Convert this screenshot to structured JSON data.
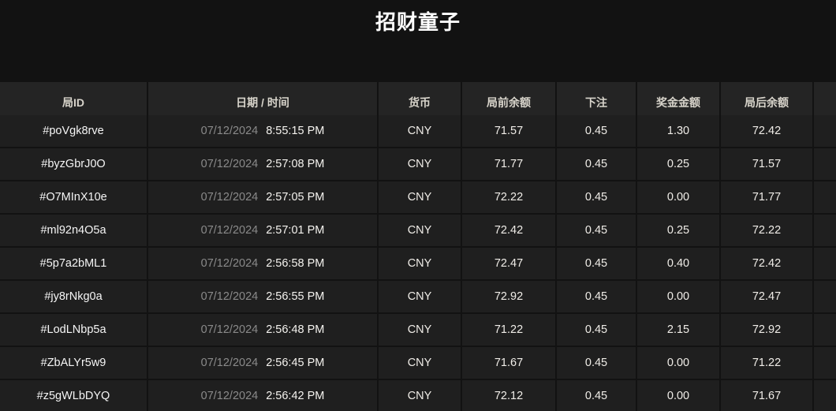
{
  "title": "招财童子",
  "table": {
    "headers": [
      {
        "key": "id",
        "label": "局ID"
      },
      {
        "key": "datetime",
        "label": "日期 / 时间"
      },
      {
        "key": "currency",
        "label": "货币"
      },
      {
        "key": "before",
        "label": "局前余额"
      },
      {
        "key": "bet",
        "label": "下注"
      },
      {
        "key": "prize",
        "label": "奖金金额"
      },
      {
        "key": "after",
        "label": "局后余额"
      },
      {
        "key": "extra",
        "label": ""
      }
    ],
    "rows": [
      {
        "id": "#poVgk8rve",
        "date": "07/12/2024",
        "time": "8:55:15 PM",
        "currency": "CNY",
        "before": "71.57",
        "bet": "0.45",
        "prize": "1.30",
        "after": "72.42"
      },
      {
        "id": "#byzGbrJ0O",
        "date": "07/12/2024",
        "time": "2:57:08 PM",
        "currency": "CNY",
        "before": "71.77",
        "bet": "0.45",
        "prize": "0.25",
        "after": "71.57"
      },
      {
        "id": "#O7MInX10e",
        "date": "07/12/2024",
        "time": "2:57:05 PM",
        "currency": "CNY",
        "before": "72.22",
        "bet": "0.45",
        "prize": "0.00",
        "after": "71.77"
      },
      {
        "id": "#ml92n4O5a",
        "date": "07/12/2024",
        "time": "2:57:01 PM",
        "currency": "CNY",
        "before": "72.42",
        "bet": "0.45",
        "prize": "0.25",
        "after": "72.22"
      },
      {
        "id": "#5p7a2bML1",
        "date": "07/12/2024",
        "time": "2:56:58 PM",
        "currency": "CNY",
        "before": "72.47",
        "bet": "0.45",
        "prize": "0.40",
        "after": "72.42"
      },
      {
        "id": "#jy8rNkg0a",
        "date": "07/12/2024",
        "time": "2:56:55 PM",
        "currency": "CNY",
        "before": "72.92",
        "bet": "0.45",
        "prize": "0.00",
        "after": "72.47"
      },
      {
        "id": "#LodLNbp5a",
        "date": "07/12/2024",
        "time": "2:56:48 PM",
        "currency": "CNY",
        "before": "71.22",
        "bet": "0.45",
        "prize": "2.15",
        "after": "72.92"
      },
      {
        "id": "#ZbALYr5w9",
        "date": "07/12/2024",
        "time": "2:56:45 PM",
        "currency": "CNY",
        "before": "71.67",
        "bet": "0.45",
        "prize": "0.00",
        "after": "71.22"
      },
      {
        "id": "#z5gWLbDYQ",
        "date": "07/12/2024",
        "time": "2:56:42 PM",
        "currency": "CNY",
        "before": "72.12",
        "bet": "0.45",
        "prize": "0.00",
        "after": "71.67"
      }
    ]
  },
  "colors": {
    "background": "#121212",
    "header_row_bg": "#242424",
    "data_row_bg": "#1f1f1f",
    "header_text": "#d8d4cb",
    "date_text": "#8a8a8a",
    "primary_text": "#f5f5f5"
  }
}
